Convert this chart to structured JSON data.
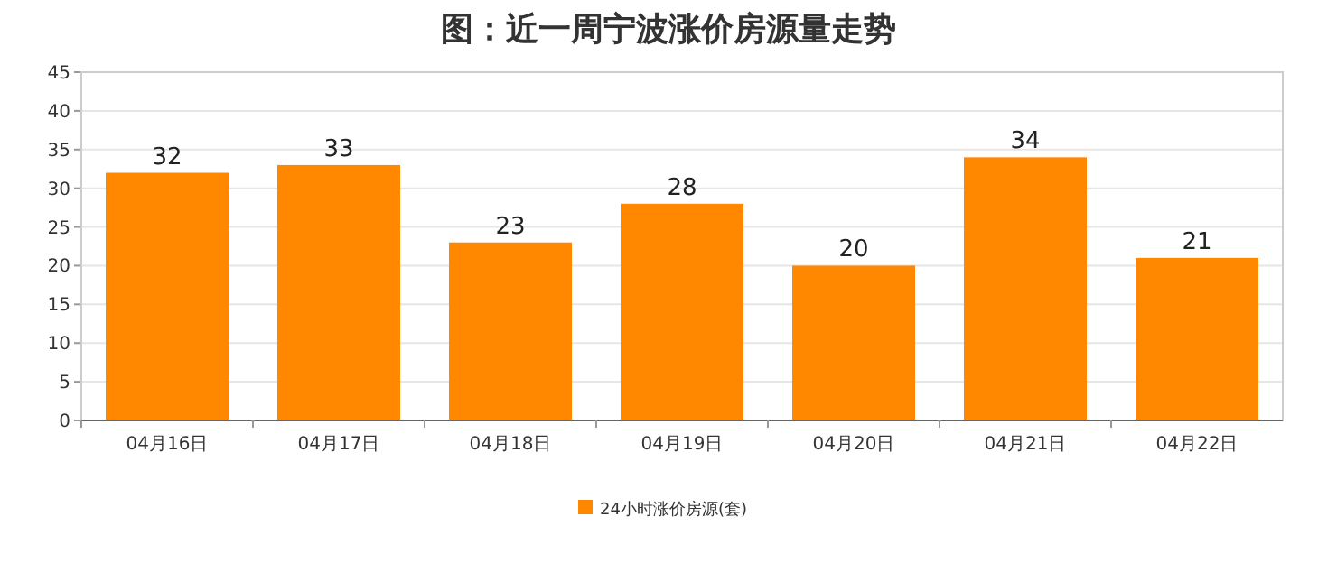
{
  "chart_data": {
    "type": "bar",
    "title": "图：近一周宁波涨价房源量走势",
    "categories": [
      "04月16日",
      "04月17日",
      "04月18日",
      "04月19日",
      "04月20日",
      "04月21日",
      "04月22日"
    ],
    "series": [
      {
        "name": "24小时涨价房源(套)",
        "color": "#ff8800",
        "values": [
          32,
          33,
          23,
          28,
          20,
          34,
          21
        ]
      }
    ],
    "ylim": [
      0,
      45
    ],
    "yticks": [
      0,
      5,
      10,
      15,
      20,
      25,
      30,
      35,
      40,
      45
    ],
    "grid": "y",
    "legend": "bottom",
    "data_labels": true
  }
}
